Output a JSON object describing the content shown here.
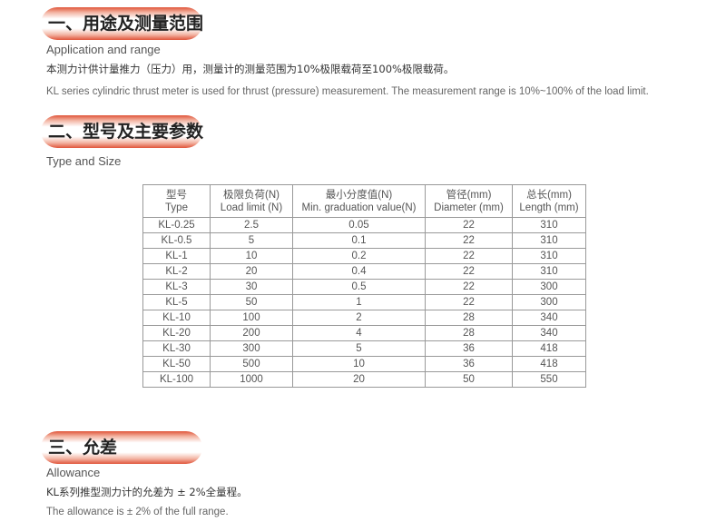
{
  "sections": [
    {
      "title": "一、用途及测量范围",
      "subtitle": "Application and range",
      "lines": [
        "本测力计供计量推力（压力）用，测量计的测量范围为10%极限载荷至100%极限载荷。",
        "KL series cylindric thrust meter is used for thrust (pressure) measurement. The measurement range is 10%~100% of the load limit."
      ]
    },
    {
      "title": "二、型号及主要参数",
      "subtitle": "Type and Size"
    },
    {
      "title": "三、允差",
      "subtitle": "Allowance",
      "lines": [
        "KL系列推型测力计的允差为 ± 2%全量程。",
        "The allowance is  ± 2% of the full range."
      ]
    }
  ],
  "table": {
    "headers_cn": [
      "型号",
      "极限负荷(N)",
      "最小分度值(N)",
      "管径(mm)",
      "总长(mm)"
    ],
    "headers_en": [
      "Type",
      "Load limit (N)",
      "Min. graduation value(N)",
      "Diameter (mm)",
      "Length (mm)"
    ],
    "rows": [
      [
        "KL-0.25",
        "2.5",
        "0.05",
        "22",
        "310"
      ],
      [
        "KL-0.5",
        "5",
        "0.1",
        "22",
        "310"
      ],
      [
        "KL-1",
        "10",
        "0.2",
        "22",
        "310"
      ],
      [
        "KL-2",
        "20",
        "0.4",
        "22",
        "310"
      ],
      [
        "KL-3",
        "30",
        "0.5",
        "22",
        "300"
      ],
      [
        "KL-5",
        "50",
        "1",
        "22",
        "300"
      ],
      [
        "KL-10",
        "100",
        "2",
        "28",
        "340"
      ],
      [
        "KL-20",
        "200",
        "4",
        "28",
        "340"
      ],
      [
        "KL-30",
        "300",
        "5",
        "36",
        "418"
      ],
      [
        "KL-50",
        "500",
        "10",
        "36",
        "418"
      ],
      [
        "KL-100",
        "1000",
        "20",
        "50",
        "550"
      ]
    ]
  }
}
